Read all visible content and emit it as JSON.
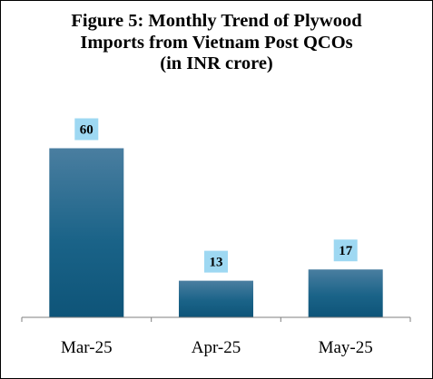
{
  "chart_data": {
    "type": "bar",
    "title_lines": [
      "Figure 5: Monthly Trend of Plywood",
      "Imports from Vietnam Post QCOs",
      "(in INR crore)"
    ],
    "categories": [
      "Mar-25",
      "Apr-25",
      "May-25"
    ],
    "values": [
      60,
      13,
      17
    ],
    "data_labels": [
      "60",
      "13",
      "17"
    ],
    "xlabel": "",
    "ylabel": "",
    "ylim": [
      0,
      65
    ],
    "grid": false,
    "legend": "none",
    "colors": {
      "bar_top": "#4A7EA0",
      "bar_bottom": "#0E5478",
      "bar_mid": "#1A6388",
      "label_bg": "#9ED8F2",
      "axis": "#7F7F7F"
    }
  }
}
